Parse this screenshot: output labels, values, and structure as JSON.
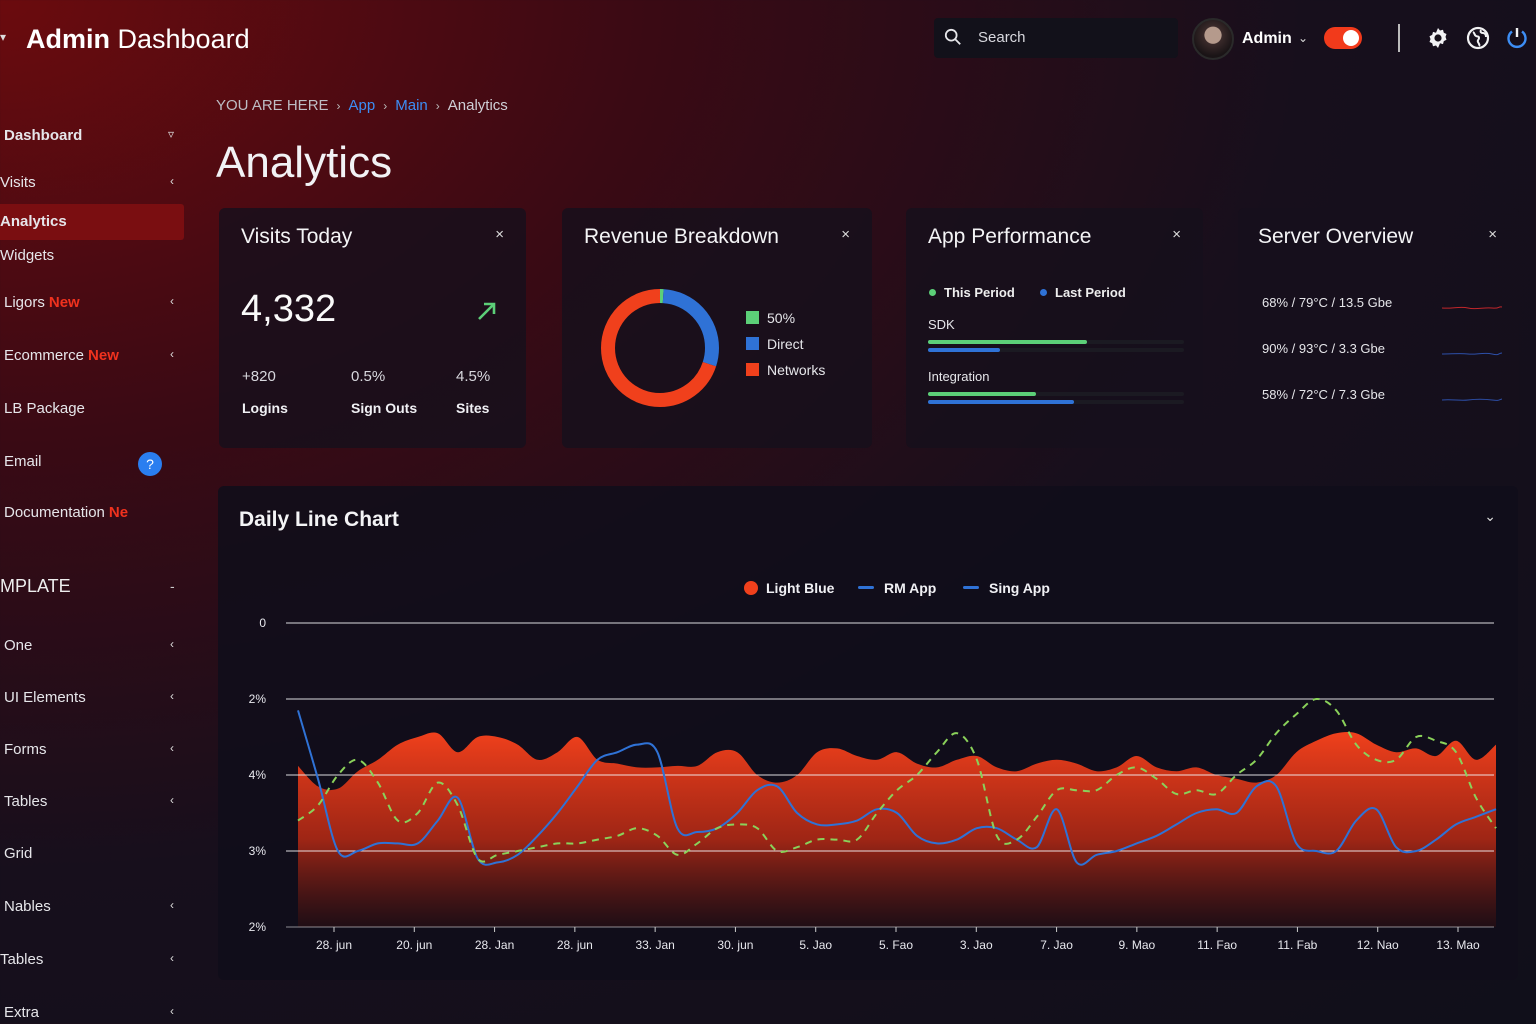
{
  "header": {
    "brand_bold": "Admin",
    "brand_rest": " Dashboard",
    "search_placeholder": "Search",
    "user_name": "Admin",
    "colors": {
      "toggle": "#f23a1b"
    }
  },
  "sidebar": {
    "items": [
      {
        "label": "Dashboard",
        "chevron": "v"
      },
      {
        "label": "Visits",
        "chevron": "‹"
      },
      {
        "label": "Analytics",
        "chevron": ""
      },
      {
        "label": "Widgets",
        "chevron": ""
      },
      {
        "label": "Ligors",
        "badge": "New",
        "chevron": "‹"
      },
      {
        "label": "Ecommerce",
        "badge": "New",
        "chevron": "‹"
      },
      {
        "label": "LB Package",
        "chevron": ""
      },
      {
        "label": "Email",
        "chevron": ""
      },
      {
        "label": "Documentation",
        "badge": "Ne",
        "chevron": ""
      }
    ],
    "help_badge": "?",
    "section_label": "MPLATE",
    "section_toggle": "-",
    "section_items": [
      {
        "label": "One",
        "chevron": "‹"
      },
      {
        "label": "UI Elements",
        "chevron": "‹"
      },
      {
        "label": "Forms",
        "chevron": "‹"
      },
      {
        "label": "Tables",
        "chevron": "‹"
      },
      {
        "label": "Grid",
        "chevron": ""
      },
      {
        "label": "Nables",
        "chevron": "‹"
      },
      {
        "label": "Tables",
        "chevron": "‹"
      },
      {
        "label": "Extra",
        "chevron": "‹"
      }
    ]
  },
  "breadcrumb": {
    "prefix": "YOU ARE HERE",
    "items": [
      "App",
      "Main",
      "Analytics"
    ]
  },
  "page": {
    "title": "Analytics"
  },
  "cards": {
    "visits": {
      "title": "Visits Today",
      "close": "×",
      "value": "4,332",
      "stats": [
        {
          "value": "+820",
          "label": "Logins"
        },
        {
          "value": "0.5%",
          "label": "Sign Outs"
        },
        {
          "value": "4.5%",
          "label": "Sites"
        }
      ]
    },
    "revenue": {
      "title": "Revenue Breakdown",
      "close": "×",
      "legend": [
        {
          "label": "50%",
          "color": "#5ccf78"
        },
        {
          "label": "Direct",
          "color": "#2f72d6"
        },
        {
          "label": "Networks",
          "color": "#f0401c"
        }
      ],
      "donut": [
        {
          "name": "Green",
          "value": 0.01,
          "color": "#5ccf78"
        },
        {
          "name": "Direct",
          "value": 0.29,
          "color": "#2f72d6"
        },
        {
          "name": "Networks",
          "value": 0.7,
          "color": "#f0401c"
        }
      ]
    },
    "performance": {
      "title": "App Performance",
      "close": "×",
      "legend": [
        {
          "label": "This Period",
          "color": "#5ccf78"
        },
        {
          "label": "Last Period",
          "color": "#2f72d6"
        }
      ],
      "rows": [
        {
          "label": "SDK",
          "this": 0.62,
          "last": 0.28
        },
        {
          "label": "Integration",
          "this": 0.42,
          "last": 0.57
        }
      ]
    },
    "server": {
      "title": "Server Overview",
      "close": "×",
      "rows": [
        {
          "text": "68% / 79°C / 13.5 Gbe",
          "color": "#c0262b"
        },
        {
          "text": "90% / 93°C / 3.3 Gbe",
          "color": "#2d4fa8"
        },
        {
          "text": "58% / 72°C / 7.3 Gbe",
          "color": "#2d4fa8"
        }
      ]
    }
  },
  "chart_data": {
    "type": "line",
    "title": "Daily Line Chart",
    "collapse_icon": "⌄",
    "legend": [
      {
        "name": "Light Blue",
        "style": "dot",
        "color": "#f0401c"
      },
      {
        "name": "RM App",
        "style": "line",
        "color": "#2f72d6"
      },
      {
        "name": "Sing App",
        "style": "line",
        "color": "#2f72d6"
      }
    ],
    "y_tick_labels": [
      "2%",
      "3%",
      "4%",
      "2%",
      "0"
    ],
    "x_tick_labels": [
      "28. jun",
      "20. jun",
      "28. Jan",
      "28. jun",
      "33. Jan",
      "30. jun",
      "5. Jao",
      "5. Fao",
      "3. Jao",
      "7. Jao",
      "9. Mao",
      "11. Fao",
      "11. Fab",
      "12. Nao",
      "13. Mao"
    ],
    "y_ticks": [
      0,
      1,
      2,
      3,
      4
    ],
    "ylim": [
      0,
      4
    ],
    "series": [
      {
        "name": "Light Blue",
        "kind": "area",
        "color": "#f0401c",
        "x": [
          0,
          0.25,
          0.5,
          0.75,
          1,
          1.25,
          1.5,
          1.75,
          2,
          2.25,
          2.5,
          2.75,
          3,
          3.25,
          3.5,
          3.75,
          4,
          4.25,
          4.5,
          4.75,
          5,
          5.25,
          5.5,
          5.75,
          6,
          6.25,
          6.5,
          6.75,
          7,
          7.25,
          7.5,
          7.75,
          8,
          8.25,
          8.5,
          8.75,
          9,
          9.25,
          9.5,
          9.75,
          10,
          10.25,
          10.5,
          10.75,
          11,
          11.25,
          11.5,
          11.75,
          12,
          12.25,
          12.5,
          12.75,
          13,
          13.25,
          13.5,
          13.75,
          14,
          14.25,
          14.5,
          14.75,
          15
        ],
        "values": [
          2.12,
          1.85,
          1.82,
          2.05,
          2.2,
          2.4,
          2.5,
          2.55,
          2.3,
          2.5,
          2.5,
          2.4,
          2.2,
          2.3,
          2.5,
          2.2,
          2.15,
          2.1,
          2.1,
          2.12,
          2.12,
          2.3,
          2.3,
          2.0,
          1.9,
          2.0,
          2.3,
          2.35,
          2.25,
          2.2,
          2.3,
          2.15,
          2.1,
          2.2,
          2.25,
          2.1,
          2.05,
          2.15,
          2.2,
          2.15,
          2.05,
          2.1,
          2.25,
          2.1,
          2.05,
          2.1,
          2.0,
          1.95,
          1.9,
          2.0,
          2.3,
          2.45,
          2.55,
          2.55,
          2.4,
          2.3,
          2.35,
          2.25,
          2.45,
          2.2,
          2.4
        ]
      },
      {
        "name": "RM App",
        "kind": "line",
        "color": "#2f72d6",
        "x": [
          0,
          0.25,
          0.5,
          0.75,
          1,
          1.25,
          1.5,
          1.75,
          2,
          2.25,
          2.5,
          2.75,
          3,
          3.25,
          3.5,
          3.75,
          4,
          4.25,
          4.5,
          4.75,
          5,
          5.25,
          5.5,
          5.75,
          6,
          6.25,
          6.5,
          6.75,
          7,
          7.25,
          7.5,
          7.75,
          8,
          8.25,
          8.5,
          8.75,
          9,
          9.25,
          9.5,
          9.75,
          10,
          10.25,
          10.5,
          10.75,
          11,
          11.25,
          11.5,
          11.75,
          12,
          12.25,
          12.5,
          12.75,
          13,
          13.25,
          13.5,
          13.75,
          14,
          14.25,
          14.5,
          14.75,
          15
        ],
        "values": [
          2.85,
          1.95,
          1.0,
          1.0,
          1.1,
          1.1,
          1.1,
          1.4,
          1.7,
          0.9,
          0.85,
          0.95,
          1.2,
          1.5,
          1.85,
          2.2,
          2.3,
          2.4,
          2.3,
          1.3,
          1.25,
          1.3,
          1.5,
          1.8,
          1.85,
          1.5,
          1.35,
          1.35,
          1.4,
          1.55,
          1.5,
          1.2,
          1.1,
          1.15,
          1.3,
          1.3,
          1.15,
          1.05,
          1.55,
          0.85,
          0.95,
          1.0,
          1.1,
          1.2,
          1.35,
          1.5,
          1.55,
          1.5,
          1.85,
          1.85,
          1.1,
          1.0,
          1.0,
          1.4,
          1.55,
          1.05,
          1.0,
          1.15,
          1.35,
          1.45,
          1.55
        ]
      },
      {
        "name": "Sing App",
        "kind": "dashed",
        "color": "#8ad15a",
        "x": [
          0,
          0.25,
          0.5,
          0.75,
          1,
          1.25,
          1.5,
          1.75,
          2,
          2.25,
          2.5,
          2.75,
          3,
          3.25,
          3.5,
          3.75,
          4,
          4.25,
          4.5,
          4.75,
          5,
          5.25,
          5.5,
          5.75,
          6,
          6.25,
          6.5,
          6.75,
          7,
          7.25,
          7.5,
          7.75,
          8,
          8.25,
          8.5,
          8.75,
          9,
          9.25,
          9.5,
          9.75,
          10,
          10.25,
          10.5,
          10.75,
          11,
          11.25,
          11.5,
          11.75,
          12,
          12.25,
          12.5,
          12.75,
          13,
          13.25,
          13.5,
          13.75,
          14,
          14.25,
          14.5,
          14.75,
          15
        ],
        "values": [
          1.4,
          1.6,
          2.0,
          2.2,
          1.9,
          1.4,
          1.5,
          1.9,
          1.6,
          0.9,
          0.95,
          1.0,
          1.05,
          1.1,
          1.1,
          1.15,
          1.2,
          1.3,
          1.2,
          0.95,
          1.1,
          1.3,
          1.35,
          1.3,
          1.0,
          1.05,
          1.15,
          1.15,
          1.15,
          1.5,
          1.8,
          2.0,
          2.3,
          2.55,
          2.2,
          1.2,
          1.15,
          1.45,
          1.8,
          1.8,
          1.8,
          2.0,
          2.1,
          1.95,
          1.75,
          1.8,
          1.75,
          2.0,
          2.2,
          2.55,
          2.8,
          3.0,
          2.85,
          2.4,
          2.2,
          2.2,
          2.5,
          2.45,
          2.3,
          1.7,
          1.3
        ]
      }
    ]
  }
}
